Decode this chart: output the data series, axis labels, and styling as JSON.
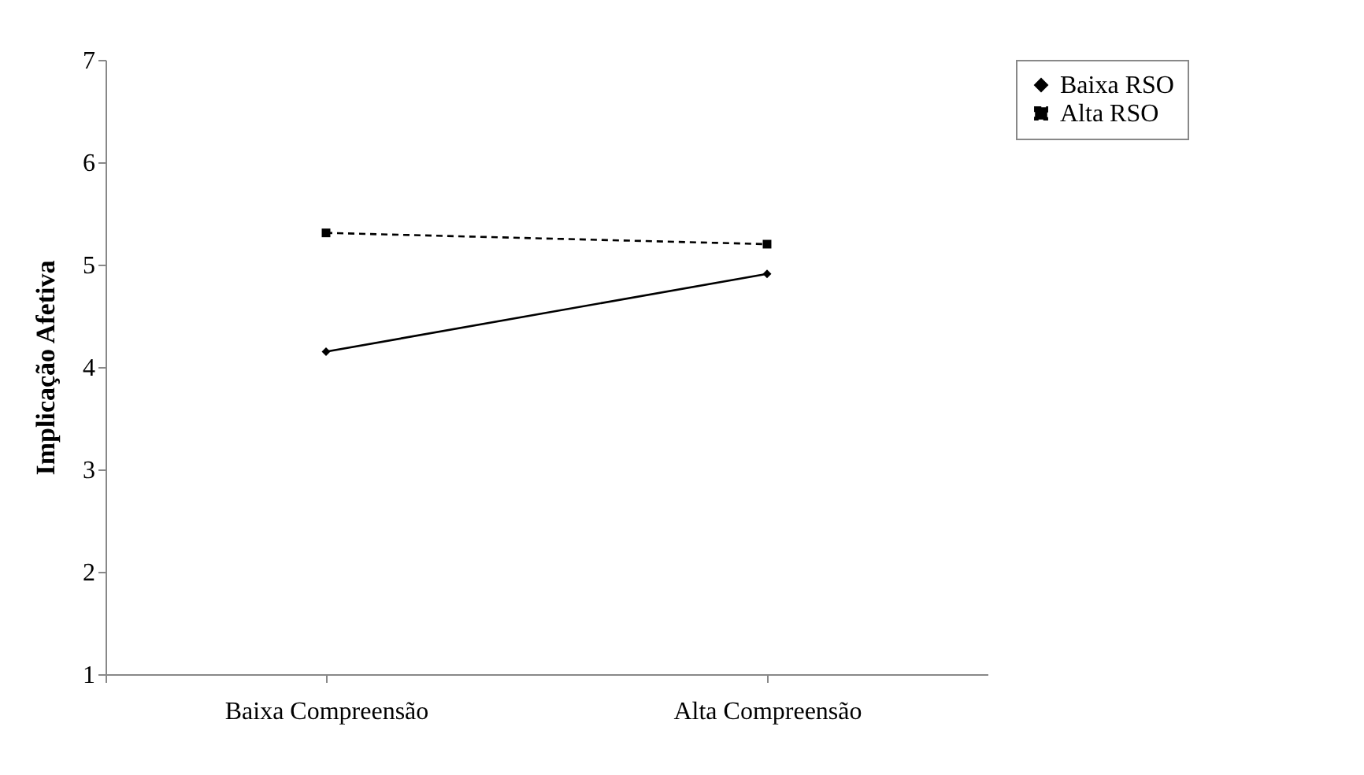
{
  "chart_data": {
    "type": "line",
    "ylabel": "Implicação Afetiva",
    "categories": [
      "Baixa Compreensão",
      "Alta Compreensão"
    ],
    "series": [
      {
        "name": "Baixa RSO",
        "color": "#000000",
        "values": [
          4.15,
          4.91
        ],
        "marker": "diamond",
        "line_style": "solid"
      },
      {
        "name": "Alta RSO",
        "color": "#000000",
        "values": [
          5.31,
          5.2
        ],
        "marker": "square",
        "line_style": "dashed"
      }
    ],
    "ylim": [
      1,
      7
    ],
    "yticks": [
      1,
      2,
      3,
      4,
      5,
      6,
      7
    ],
    "grid": false,
    "legend": "right"
  }
}
